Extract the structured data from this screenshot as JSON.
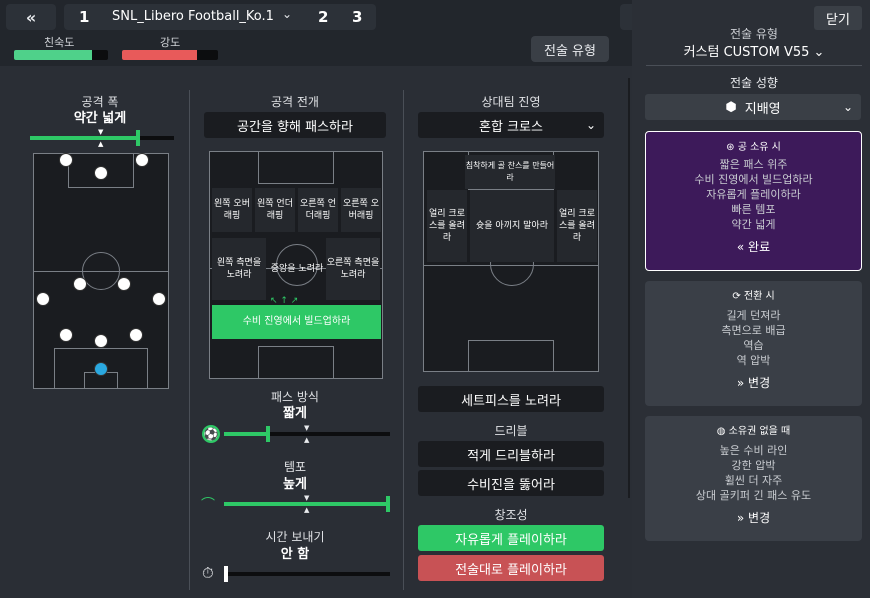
{
  "topbar": {
    "back_icon": "«",
    "tab1": "1",
    "tactic_name": "SNL_Libero Football_Ko.1",
    "tab2": "2",
    "tab3": "3",
    "familiarity_label": "친숙도",
    "familiarity_value": 0.83,
    "familiarity_color": "#4fd18a",
    "intensity_label": "강도",
    "intensity_value": 0.78,
    "intensity_color": "#e85a5a",
    "tactic_style_btn": "전술 유형"
  },
  "width_col": {
    "title": "공격 폭",
    "value": "약간 넓게"
  },
  "attack_col": {
    "title": "공격 전개",
    "dropdown": "공간을 향해 패스하라",
    "zones": {
      "z1": "왼쪽 오버래핑",
      "z2": "왼쪽 언더래핑",
      "z3": "오른쪽 언더래핑",
      "z4": "오른쪽 오버래핑",
      "z5": "왼쪽 측면을 노려라",
      "z6": "중앙을 노려라",
      "z7": "오른쪽 측면을 노려라",
      "z8": "수비 진영에서 빌드업하라"
    },
    "pass_title": "패스 방식",
    "pass_value": "짧게",
    "tempo_title": "템포",
    "tempo_value": "높게",
    "time_title": "시간 보내기",
    "time_value": "안 함"
  },
  "opp_col": {
    "title": "상대팀 진영",
    "dropdown": "혼합 크로스",
    "zones": {
      "z1": "침착하게 골 찬스를 만들어라",
      "z2": "얼리 크로스를 올려라",
      "z3": "슛을 아끼지 말아라",
      "z4": "얼리 크로스를 올려라"
    },
    "setpiece": "세트피스를 노려라",
    "dribble_title": "드리블",
    "dribble1": "적게 드리블하라",
    "dribble2": "수비진을 뚫어라",
    "creativity_title": "창조성",
    "creative_free": "자유롭게 플레이하라",
    "creative_discipline": "전술대로 플레이하라"
  },
  "panel": {
    "close": "닫기",
    "style_title": "전술 유형",
    "style_value": "커스텀 CUSTOM V55",
    "tendency_title": "전술 성향",
    "tendency_value": "지배영",
    "in_possession": {
      "title": "공 소유 시",
      "lines": [
        "짧은 패스 위주",
        "수비 진영에서 빌드업하라",
        "자유롭게 플레이하라",
        "빠른 템포",
        "약간 넓게"
      ],
      "action": "완료"
    },
    "transition": {
      "title": "전환 시",
      "lines": [
        "길게 던져라",
        "측면으로 배급",
        "역습",
        "역 압박"
      ],
      "action": "변경"
    },
    "out_possession": {
      "title": "소유권 없을 때",
      "lines": [
        "높은 수비 라인",
        "강한 압박",
        "휠씬 더 자주",
        "상대 골키퍼 긴 패스 유도"
      ],
      "action": "변경"
    }
  },
  "colors": {
    "accent_green": "#2ec866",
    "accent_purple": "#3d1a5a",
    "keeper": "#2aa8e0"
  }
}
